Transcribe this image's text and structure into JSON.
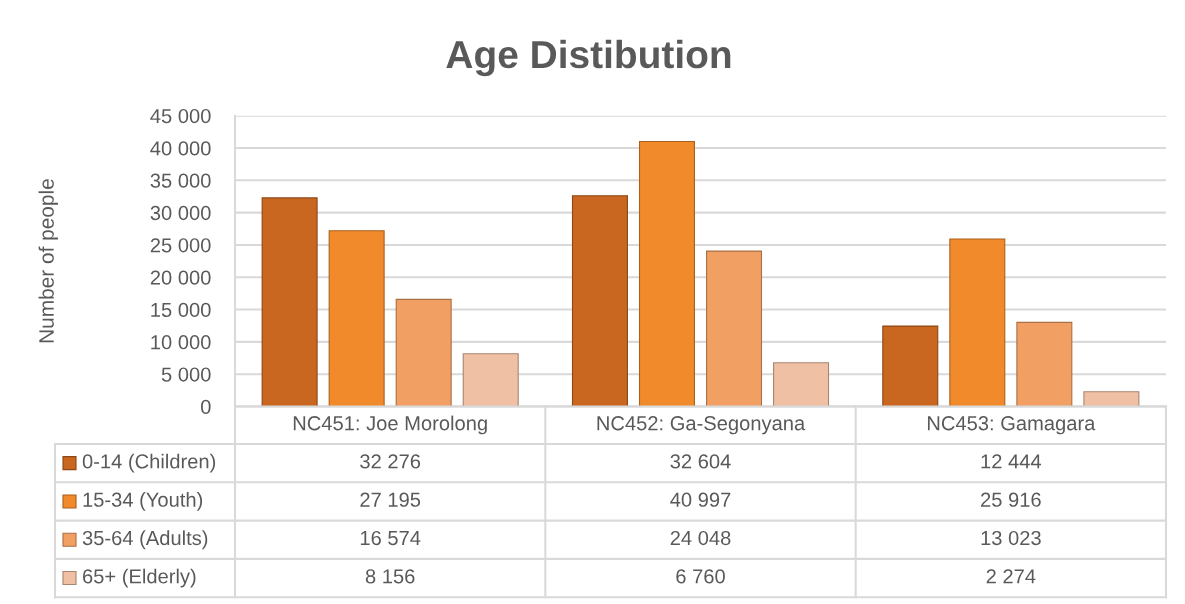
{
  "chart_data": {
    "type": "bar",
    "title": "Age Distibution",
    "ylabel": "Number of people",
    "categories": [
      "NC451: Joe Morolong",
      "NC452: Ga-Segonyana",
      "NC453: Gamagara"
    ],
    "series": [
      {
        "name": "0-14 (Children)",
        "color": "#c9661f",
        "values": [
          32276,
          32604,
          12444
        ],
        "value_labels": [
          "32 276",
          "32 604",
          "12 444"
        ]
      },
      {
        "name": "15-34 (Youth)",
        "color": "#f18a2b",
        "values": [
          27195,
          40997,
          25916
        ],
        "value_labels": [
          "27 195",
          "40 997",
          "25 916"
        ]
      },
      {
        "name": "35-64 (Adults)",
        "color": "#f29f63",
        "values": [
          16574,
          24048,
          13023
        ],
        "value_labels": [
          "16 574",
          "24 048",
          "13 023"
        ]
      },
      {
        "name": "65+ (Elderly)",
        "color": "#efc0a3",
        "values": [
          8156,
          6760,
          2274
        ],
        "value_labels": [
          "8 156",
          "6 760",
          "2 274"
        ]
      }
    ],
    "ylim": [
      0,
      45000
    ],
    "yticks": [
      0,
      {
        "value": 5000,
        "label": "5 000"
      },
      {
        "value": 10000,
        "label": "10 000"
      },
      {
        "value": 15000,
        "label": "15 000"
      },
      {
        "value": 20000,
        "label": "20 000"
      },
      {
        "value": 25000,
        "label": "25 000"
      },
      {
        "value": 30000,
        "label": "30 000"
      },
      {
        "value": 35000,
        "label": "35 000"
      },
      {
        "value": 40000,
        "label": "40 000"
      },
      {
        "value": 45000,
        "label": "45 000"
      }
    ],
    "grid": "y",
    "legend": "bottom"
  }
}
